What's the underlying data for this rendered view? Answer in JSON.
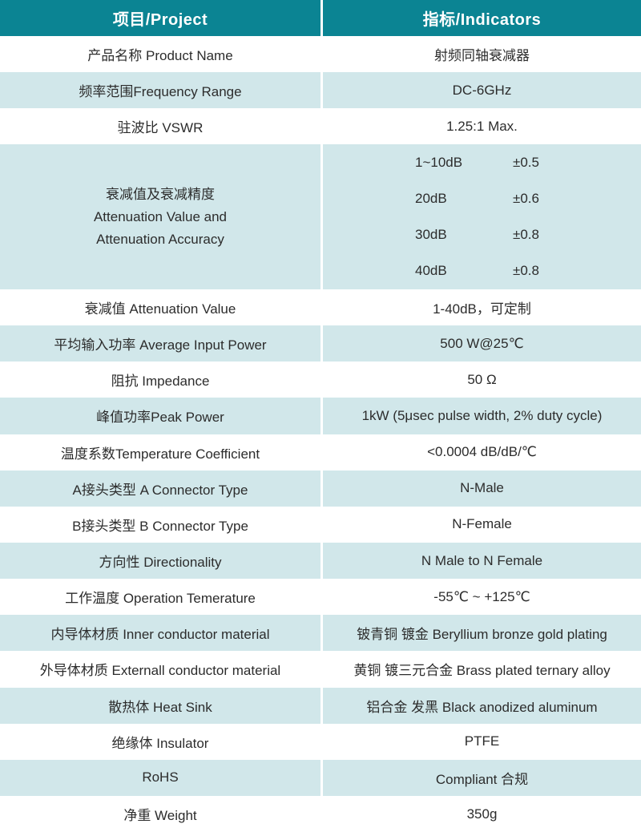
{
  "colors": {
    "header_bg": "#0b8493",
    "header_text": "#ffffff",
    "row_shade_bg": "#d1e7ea",
    "row_bg": "#ffffff",
    "text": "#2c2c2c",
    "divider": "#ffffff"
  },
  "table": {
    "header": {
      "project": "项目/Project",
      "indicators": "指标/Indicators"
    },
    "rows": [
      {
        "project": "产品名称 Product Name",
        "indicator": "射频同轴衰减器",
        "shade": false
      },
      {
        "project": "频率范围Frequency Range",
        "indicator": "DC-6GHz",
        "shade": true
      },
      {
        "project": "驻波比 VSWR",
        "indicator": "1.25:1 Max.",
        "shade": false
      },
      {
        "tall": true,
        "shade": true,
        "project_lines": [
          "衰减值及衰减精度",
          "Attenuation Value and",
          "Attenuation Accuracy"
        ],
        "indicator_pairs": [
          [
            "1~10dB",
            "±0.5"
          ],
          [
            "20dB",
            "±0.6"
          ],
          [
            "30dB",
            "±0.8"
          ],
          [
            "40dB",
            "±0.8"
          ]
        ]
      },
      {
        "project": "衰减值 Attenuation Value",
        "indicator": "1-40dB，可定制",
        "shade": false
      },
      {
        "project": "平均输入功率 Average Input Power",
        "indicator": "500 W@25℃",
        "shade": true
      },
      {
        "project": "阻抗 Impedance",
        "indicator": "50 Ω",
        "shade": false
      },
      {
        "project": "峰值功率Peak Power",
        "indicator": "1kW (5μsec pulse width, 2% duty cycle)",
        "shade": true
      },
      {
        "project": "温度系数Temperature Coefficient",
        "indicator": "<0.0004 dB/dB/℃",
        "shade": false
      },
      {
        "project": "A接头类型 A Connector Type",
        "indicator": "N-Male",
        "shade": true
      },
      {
        "project": "B接头类型 B Connector Type",
        "indicator": "N-Female",
        "shade": false
      },
      {
        "project": "方向性 Directionality",
        "indicator": "N Male to N Female",
        "shade": true
      },
      {
        "project": "工作温度 Operation Temerature",
        "indicator": "-55℃ ~ +125℃",
        "shade": false
      },
      {
        "project": "内导体材质 Inner conductor material",
        "indicator": "铍青铜 镀金 Beryllium bronze gold plating",
        "shade": true
      },
      {
        "project": "外导体材质 Externall conductor material",
        "indicator": "黄铜 镀三元合金 Brass plated ternary alloy",
        "shade": false
      },
      {
        "project": "散热体 Heat Sink",
        "indicator": "铝合金 发黑 Black anodized aluminum",
        "shade": true
      },
      {
        "project": "绝缘体 Insulator",
        "indicator": "PTFE",
        "shade": false
      },
      {
        "project": "RoHS",
        "indicator": "Compliant 合规",
        "shade": true
      },
      {
        "project": "净重 Weight",
        "indicator": "350g",
        "shade": false
      }
    ]
  }
}
